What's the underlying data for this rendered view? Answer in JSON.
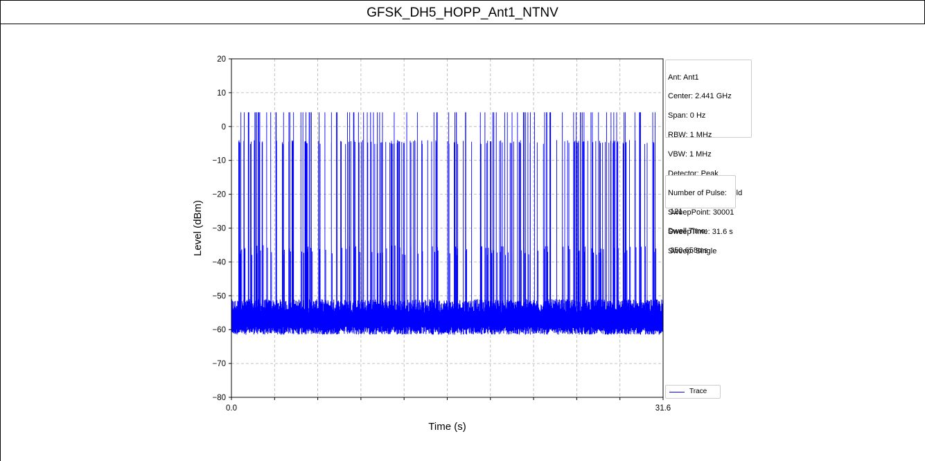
{
  "page": {
    "title": "GFSK_DH5_HOPP_Ant1_NTNV"
  },
  "info_box": {
    "lines": [
      "Ant: Ant1",
      "Center: 2.441 GHz",
      "Span: 0 Hz",
      "RBW: 1 MHz",
      "VBW: 1 MHz",
      "Detector: Peak",
      "TraceType: MAX Hold",
      "SweepPoint: 30001",
      "SweepTime: 31.6 s",
      "Sweep: Single"
    ]
  },
  "pulse_box": {
    "lines": [
      "Number of Pulse:",
      " 121",
      "Dwell Time:",
      " 350.658ms"
    ]
  },
  "chart_data": {
    "type": "line",
    "title": "",
    "xlabel": "Time (s)",
    "ylabel": "Level (dBm)",
    "xlim": [
      0.0,
      31.6
    ],
    "ylim": [
      -80,
      20
    ],
    "x_tick_labels": [
      "0.0",
      "31.6"
    ],
    "y_ticks": [
      20,
      10,
      0,
      -10,
      -20,
      -30,
      -40,
      -50,
      -60,
      -70,
      -80
    ],
    "grid": true,
    "legend": {
      "placement": "bottom-right outside",
      "entries": [
        "Trace"
      ]
    },
    "colors": {
      "trace": "#0000ff",
      "grid": "#b0b0b0"
    },
    "series": [
      {
        "name": "Trace",
        "description_levels": {
          "noise_floor_dbm": -57,
          "pulse_peak_low_dbm": -4,
          "pulse_peak_high_dbm": 4.2
        },
        "pulse_count": 121
      }
    ]
  }
}
